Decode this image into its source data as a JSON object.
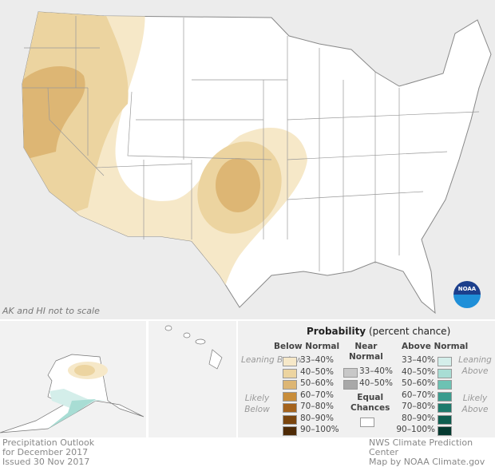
{
  "map": {
    "scale_note": "AK and HI not to scale",
    "logo": "NOAA"
  },
  "legend": {
    "title": "Probability",
    "title_suffix": "(percent chance)",
    "below": {
      "header": "Below Normal",
      "leaning": "Leaning Below",
      "likely": "Likely Below",
      "items": [
        {
          "label": "33–40%",
          "color": "#f6e8c8"
        },
        {
          "label": "40–50%",
          "color": "#ecd4a0"
        },
        {
          "label": "50–60%",
          "color": "#ddb674"
        },
        {
          "label": "60–70%",
          "color": "#c88d3a"
        },
        {
          "label": "70–80%",
          "color": "#a4631d"
        },
        {
          "label": "80–90%",
          "color": "#7a450e"
        },
        {
          "label": "90–100%",
          "color": "#4e2a06"
        }
      ]
    },
    "near": {
      "header1": "Near",
      "header2": "Normal",
      "items": [
        {
          "label": "33–40%",
          "color": "#c8c8c8"
        },
        {
          "label": "40–50%",
          "color": "#a8a8a8"
        }
      ]
    },
    "equal": {
      "line1": "Equal",
      "line2": "Chances",
      "color": "#ffffff"
    },
    "above": {
      "header": "Above Normal",
      "leaning": "Leaning Above",
      "likely": "Likely Above",
      "items": [
        {
          "label": "33–40%",
          "color": "#d4eeea"
        },
        {
          "label": "40–50%",
          "color": "#a8ddd4"
        },
        {
          "label": "50–60%",
          "color": "#6cc2b3"
        },
        {
          "label": "60–70%",
          "color": "#3a9c8e"
        },
        {
          "label": "70–80%",
          "color": "#1e7a6c"
        },
        {
          "label": "80–90%",
          "color": "#0e5e50"
        },
        {
          "label": "90–100%",
          "color": "#053a30"
        }
      ]
    }
  },
  "footer": {
    "left": [
      "Precipitation Outlook",
      "for December 2017",
      "Issued 30 Nov 2017"
    ],
    "right": [
      "NWS Climate Prediction Center",
      "Map by NOAA Climate.gov"
    ]
  }
}
